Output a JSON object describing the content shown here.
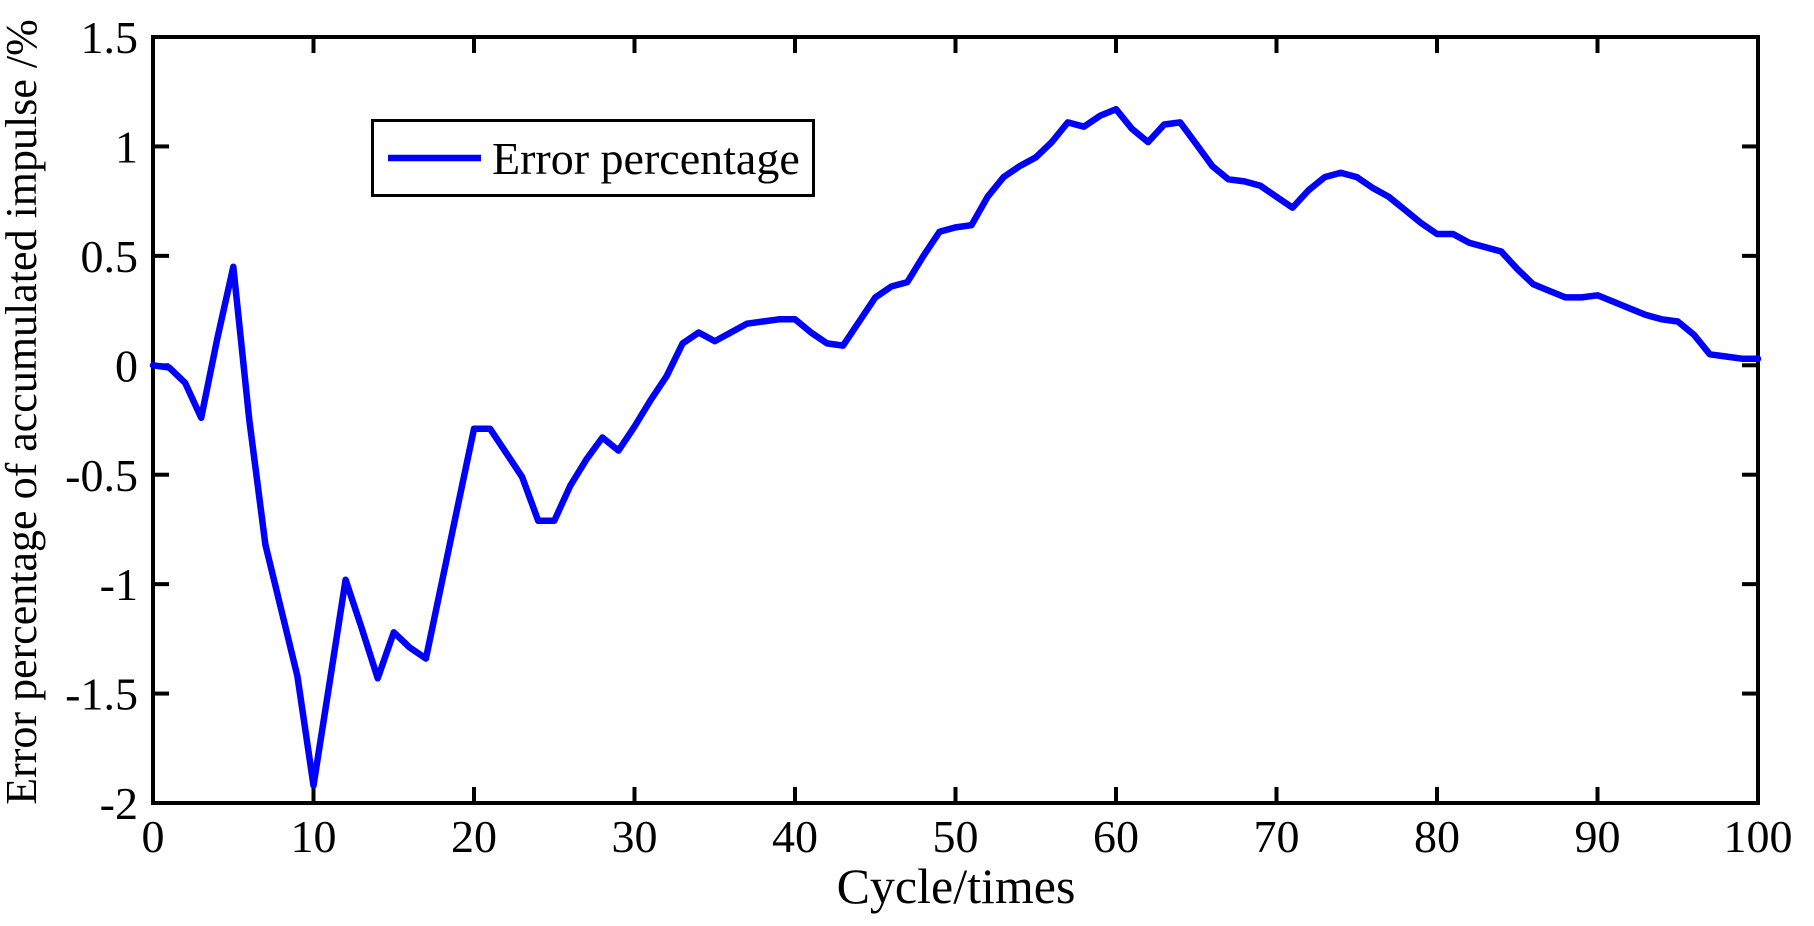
{
  "figure": {
    "background": "#FFFFFF",
    "axis_color": "#000000",
    "text_color": "#000000"
  },
  "chart_data": {
    "type": "line",
    "title": "",
    "xlabel": "Cycle/times",
    "ylabel": "Error percentage of accumulated impulse /%",
    "xlim": [
      0,
      100
    ],
    "ylim": [
      -2,
      1.5
    ],
    "xticks": [
      0,
      10,
      20,
      30,
      40,
      50,
      60,
      70,
      80,
      90,
      100
    ],
    "xtick_labels": [
      "0",
      "10",
      "20",
      "30",
      "40",
      "50",
      "60",
      "70",
      "80",
      "90",
      "100"
    ],
    "yticks": [
      -2,
      -1.5,
      -1,
      -0.5,
      0,
      0.5,
      1,
      1.5
    ],
    "ytick_labels": [
      "-2",
      "-1.5",
      "-1",
      "-0.5",
      "0",
      "0.5",
      "1",
      "1.5"
    ],
    "grid": false,
    "legend": {
      "position": "upper-left-inside",
      "entries": [
        {
          "label": "Error percentage",
          "color": "#0000FF"
        }
      ]
    },
    "series": [
      {
        "name": "Error percentage",
        "color": "#0000FF",
        "x": [
          0,
          1,
          2,
          3,
          4,
          5,
          6,
          7,
          8,
          9,
          10,
          11,
          12,
          13,
          14,
          15,
          16,
          17,
          18,
          19,
          20,
          21,
          22,
          23,
          24,
          25,
          26,
          27,
          28,
          29,
          30,
          31,
          32,
          33,
          34,
          35,
          36,
          37,
          38,
          39,
          40,
          41,
          42,
          43,
          44,
          45,
          46,
          47,
          48,
          49,
          50,
          51,
          52,
          53,
          54,
          55,
          56,
          57,
          58,
          59,
          60,
          61,
          62,
          63,
          64,
          65,
          66,
          67,
          68,
          69,
          70,
          71,
          72,
          73,
          74,
          75,
          76,
          77,
          78,
          79,
          80,
          81,
          82,
          83,
          84,
          85,
          86,
          87,
          88,
          89,
          90,
          91,
          92,
          93,
          94,
          95,
          96,
          97,
          98,
          99,
          100
        ],
        "y": [
          0.0,
          -0.01,
          -0.08,
          -0.24,
          0.12,
          0.45,
          -0.25,
          -0.82,
          -1.12,
          -1.42,
          -1.92,
          -1.45,
          -0.98,
          -1.2,
          -1.43,
          -1.22,
          -1.29,
          -1.34,
          -0.99,
          -0.64,
          -0.29,
          -0.29,
          -0.4,
          -0.51,
          -0.71,
          -0.71,
          -0.55,
          -0.43,
          -0.33,
          -0.39,
          -0.28,
          -0.16,
          -0.05,
          0.1,
          0.15,
          0.11,
          0.15,
          0.19,
          0.2,
          0.21,
          0.21,
          0.15,
          0.1,
          0.09,
          0.2,
          0.31,
          0.36,
          0.38,
          0.5,
          0.61,
          0.63,
          0.64,
          0.77,
          0.86,
          0.91,
          0.95,
          1.02,
          1.11,
          1.09,
          1.14,
          1.17,
          1.08,
          1.02,
          1.1,
          1.11,
          1.01,
          0.91,
          0.85,
          0.84,
          0.82,
          0.77,
          0.72,
          0.8,
          0.86,
          0.88,
          0.86,
          0.81,
          0.77,
          0.71,
          0.65,
          0.6,
          0.6,
          0.56,
          0.54,
          0.52,
          0.44,
          0.37,
          0.34,
          0.31,
          0.31,
          0.32,
          0.29,
          0.26,
          0.23,
          0.21,
          0.2,
          0.14,
          0.05,
          0.04,
          0.03,
          0.03
        ]
      }
    ]
  }
}
